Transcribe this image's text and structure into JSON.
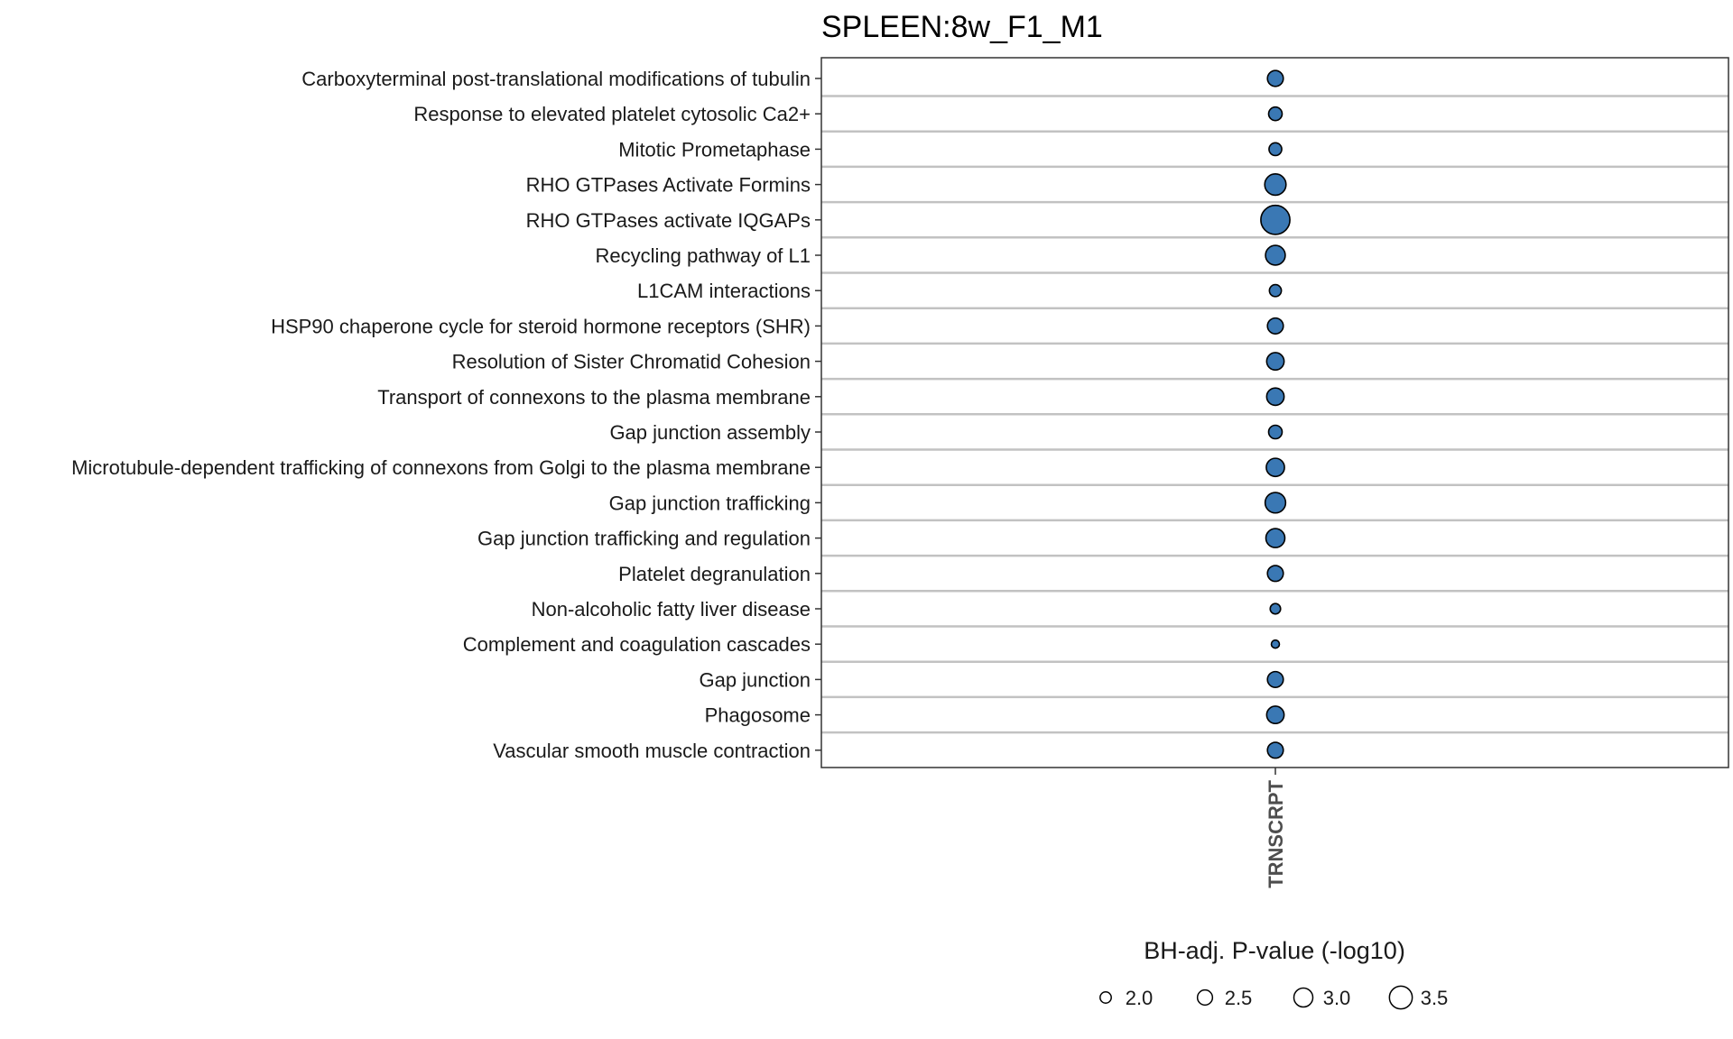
{
  "chart_data": {
    "type": "scatter",
    "title": "SPLEEN:8w_F1_M1",
    "x_categories": [
      "TRNSCRPT"
    ],
    "y_categories": [
      "Carboxyterminal post-translational modifications of tubulin",
      "Response to elevated platelet cytosolic Ca2+",
      "Mitotic Prometaphase",
      "RHO GTPases Activate Formins",
      "RHO GTPases activate IQGAPs",
      "Recycling pathway of L1",
      "L1CAM interactions",
      "HSP90 chaperone cycle for steroid hormone receptors (SHR)",
      "Resolution of Sister Chromatid Cohesion",
      "Transport of connexons to the plasma membrane",
      "Gap junction assembly",
      "Microtubule-dependent trafficking of connexons from Golgi to the plasma membrane",
      "Gap junction trafficking",
      "Gap junction trafficking and regulation",
      "Platelet degranulation ",
      "Non-alcoholic fatty liver disease",
      "Complement and coagulation cascades",
      "Gap junction",
      "Phagosome",
      "Vascular smooth muscle contraction"
    ],
    "points": [
      {
        "pathway": "Carboxyterminal post-translational modifications of tubulin",
        "x": "TRNSCRPT",
        "neg_log10_p": 2.6
      },
      {
        "pathway": "Response to elevated platelet cytosolic Ca2+",
        "x": "TRNSCRPT",
        "neg_log10_p": 2.3
      },
      {
        "pathway": "Mitotic Prometaphase",
        "x": "TRNSCRPT",
        "neg_log10_p": 2.2
      },
      {
        "pathway": "RHO GTPases Activate Formins",
        "x": "TRNSCRPT",
        "neg_log10_p": 3.3
      },
      {
        "pathway": "RHO GTPases activate IQGAPs",
        "x": "TRNSCRPT",
        "neg_log10_p": 4.3
      },
      {
        "pathway": "Recycling pathway of L1",
        "x": "TRNSCRPT",
        "neg_log10_p": 3.1
      },
      {
        "pathway": "L1CAM interactions",
        "x": "TRNSCRPT",
        "neg_log10_p": 2.1
      },
      {
        "pathway": "HSP90 chaperone cycle for steroid hormone receptors (SHR)",
        "x": "TRNSCRPT",
        "neg_log10_p": 2.6
      },
      {
        "pathway": "Resolution of Sister Chromatid Cohesion",
        "x": "TRNSCRPT",
        "neg_log10_p": 2.8
      },
      {
        "pathway": "Transport of connexons to the plasma membrane",
        "x": "TRNSCRPT",
        "neg_log10_p": 2.8
      },
      {
        "pathway": "Gap junction assembly",
        "x": "TRNSCRPT",
        "neg_log10_p": 2.3
      },
      {
        "pathway": "Microtubule-dependent trafficking of connexons from Golgi to the plasma membrane",
        "x": "TRNSCRPT",
        "neg_log10_p": 2.9
      },
      {
        "pathway": "Gap junction trafficking",
        "x": "TRNSCRPT",
        "neg_log10_p": 3.2
      },
      {
        "pathway": "Gap junction trafficking and regulation",
        "x": "TRNSCRPT",
        "neg_log10_p": 3.0
      },
      {
        "pathway": "Platelet degranulation ",
        "x": "TRNSCRPT",
        "neg_log10_p": 2.6
      },
      {
        "pathway": "Non-alcoholic fatty liver disease",
        "x": "TRNSCRPT",
        "neg_log10_p": 1.9
      },
      {
        "pathway": "Complement and coagulation cascades",
        "x": "TRNSCRPT",
        "neg_log10_p": 1.6
      },
      {
        "pathway": "Gap junction",
        "x": "TRNSCRPT",
        "neg_log10_p": 2.6
      },
      {
        "pathway": "Phagosome",
        "x": "TRNSCRPT",
        "neg_log10_p": 2.8
      },
      {
        "pathway": "Vascular smooth muscle contraction",
        "x": "TRNSCRPT",
        "neg_log10_p": 2.6
      }
    ],
    "size_legend": {
      "title": "BH-adj. P-value (-log10)",
      "values": [
        2.0,
        2.5,
        3.0,
        3.5
      ],
      "labels": [
        "2.0",
        "2.5",
        "3.0",
        "3.5"
      ],
      "placement": "bottom"
    },
    "grid": true,
    "colors": {
      "point_fill": "#3a78b4",
      "point_stroke": "#000000",
      "gridline": "#c2c2c2",
      "panel_border": "#333333"
    }
  }
}
